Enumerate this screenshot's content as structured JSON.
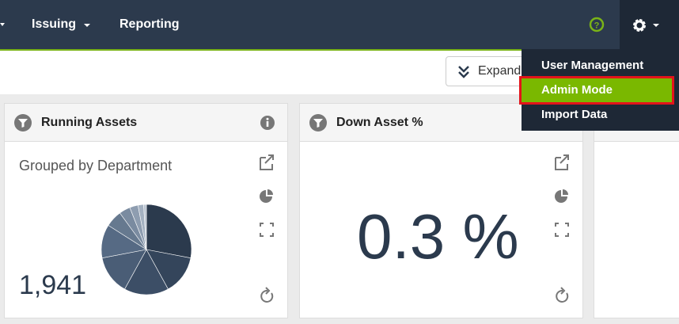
{
  "nav": {
    "items": [
      "Issuing",
      "Reporting"
    ]
  },
  "toolbar": {
    "expand": "Expand"
  },
  "menu": {
    "items": [
      "User Management",
      "Admin Mode",
      "Import Data"
    ],
    "selected": 1
  },
  "widgets": [
    {
      "title": "Running Assets",
      "subtitle": "Grouped by Department",
      "value": "1,941",
      "pie": [
        28,
        14,
        16,
        14,
        12,
        6,
        4,
        3,
        2,
        1
      ],
      "pie_colors": [
        "#2b3a4d",
        "#34455b",
        "#3c4e66",
        "#4a5d76",
        "#566a84",
        "#66798f",
        "#7a8ba0",
        "#8e9db0",
        "#a4b1c1",
        "#bcc6d2"
      ]
    },
    {
      "title": "Down Asset %",
      "value": "0.3 %"
    }
  ]
}
